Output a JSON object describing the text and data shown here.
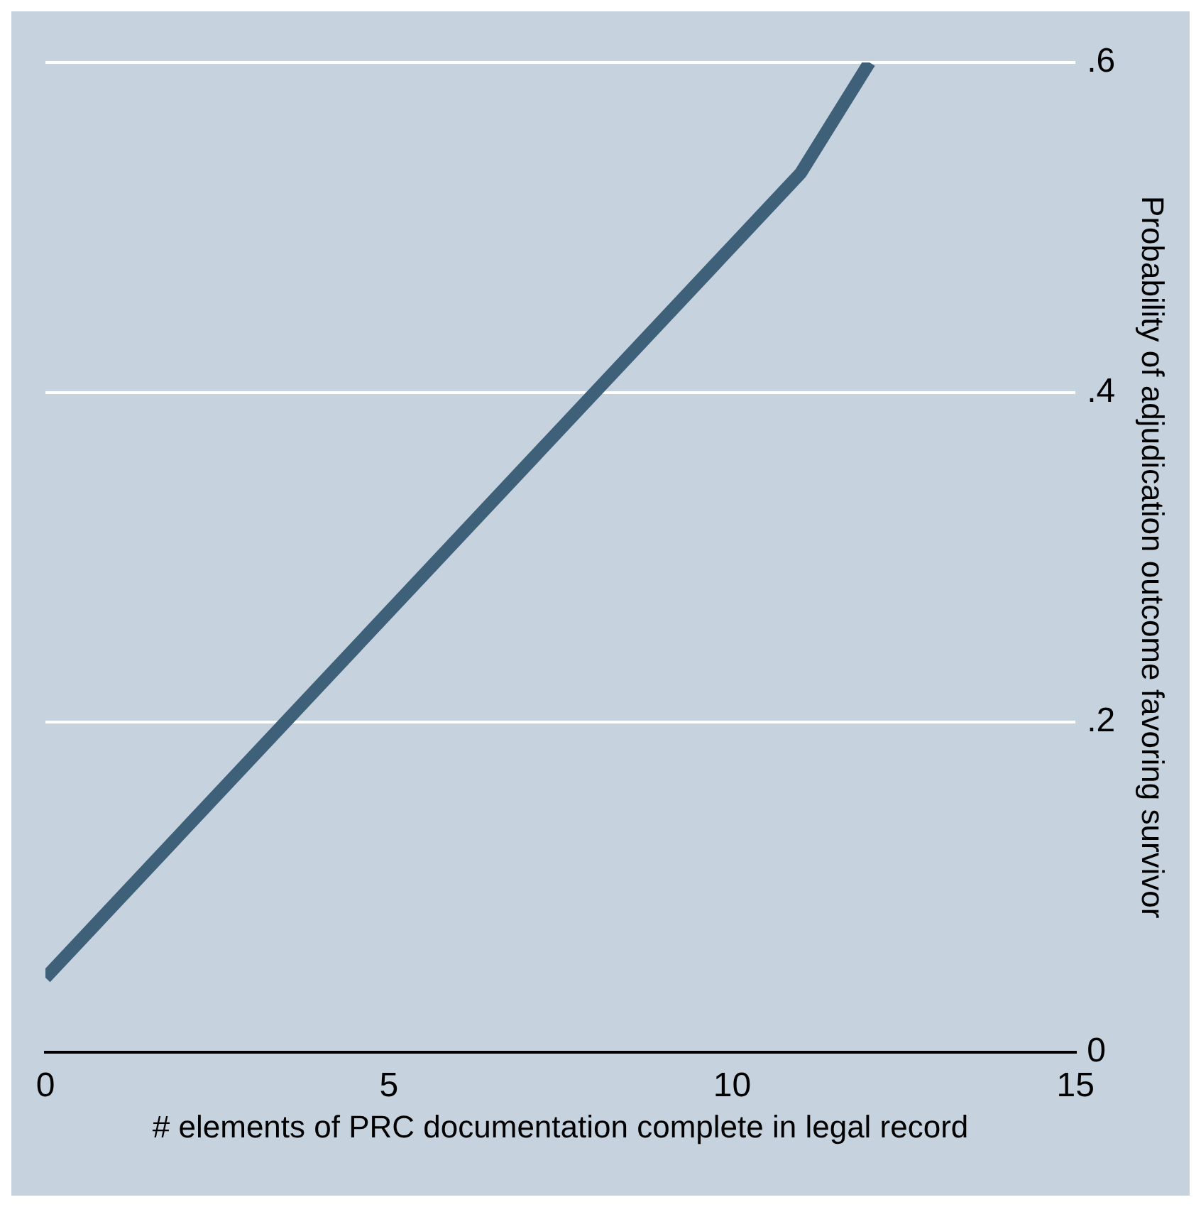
{
  "chart_data": {
    "type": "line",
    "xlabel": "# elements of PRC documentation complete in legal record",
    "ylabel": "Probability of adjudication outcome favoring survivor",
    "x": [
      0,
      11,
      12
    ],
    "series": [
      {
        "color": "#3e6079",
        "values": [
          0.045,
          0.533,
          0.6
        ]
      }
    ],
    "xlim": [
      0,
      15
    ],
    "xticks": [
      0,
      5,
      10,
      15
    ],
    "ylim": [
      0,
      0.6
    ],
    "yticks": [
      0,
      {
        "value": 0.2,
        "label": ".2"
      },
      {
        "value": 0.4,
        "label": ".4"
      },
      {
        "value": 0.6,
        "label": ".6"
      }
    ],
    "grid": "y",
    "legend": false,
    "marker": "none",
    "line_style": "solid"
  }
}
